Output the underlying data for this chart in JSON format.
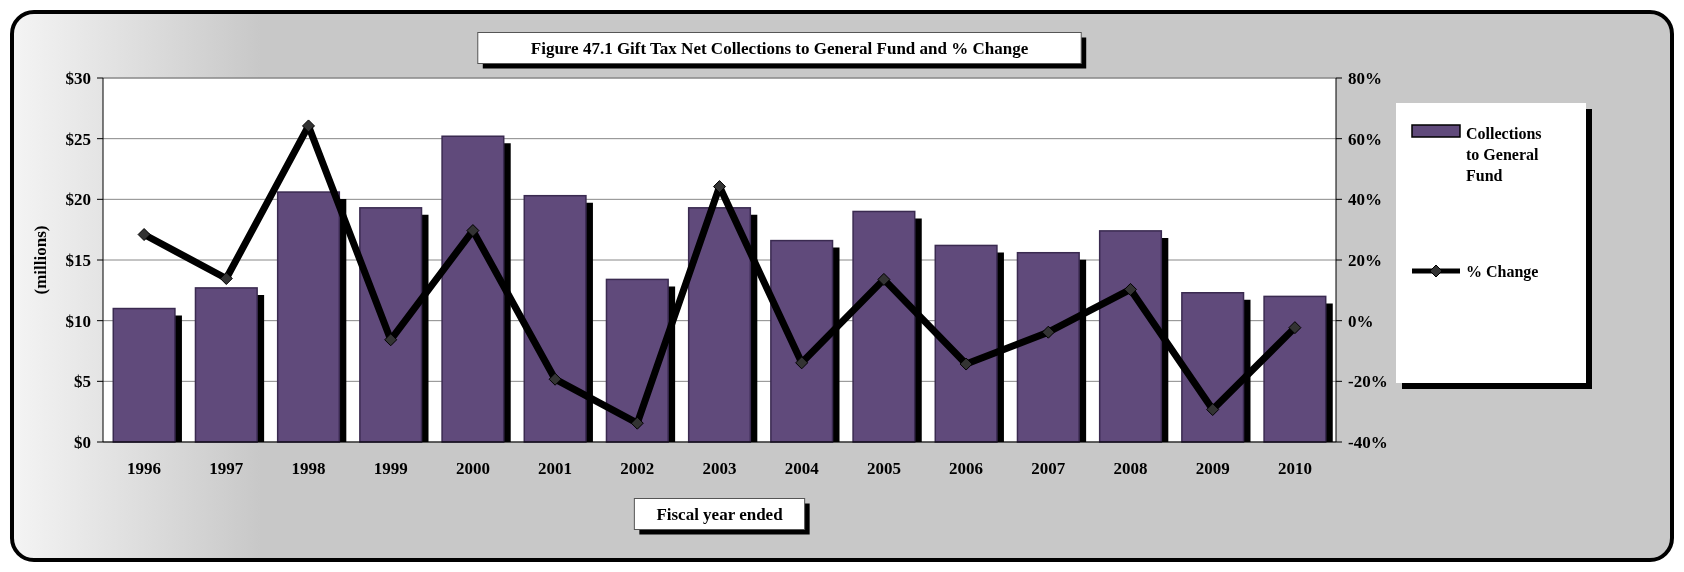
{
  "chart_data": {
    "type": "bar",
    "title": "Figure 47.1  Gift Tax Net Collections to General Fund and % Change",
    "xlabel": "Fiscal year ended",
    "ylabel": "(millions)",
    "categories": [
      "1996",
      "1997",
      "1998",
      "1999",
      "2000",
      "2001",
      "2002",
      "2003",
      "2004",
      "2005",
      "2006",
      "2007",
      "2008",
      "2009",
      "2010"
    ],
    "series": [
      {
        "name": "Collections to General Fund",
        "color": "#604a7b",
        "values": [
          11.0,
          12.7,
          20.6,
          19.3,
          25.2,
          20.3,
          13.4,
          19.3,
          16.6,
          19.0,
          16.2,
          15.6,
          17.4,
          12.3,
          12.0
        ]
      },
      {
        "name": "% Change",
        "type": "line",
        "axis": "y2",
        "color": "#000000",
        "marker": "diamond",
        "values": [
          28.4,
          13.9,
          64.2,
          -6.3,
          29.7,
          -19.3,
          -33.8,
          44.2,
          -13.9,
          13.6,
          -14.3,
          -3.8,
          10.3,
          -29.3,
          -2.3
        ]
      }
    ],
    "ylim": [
      0,
      30
    ],
    "yticks": [
      {
        "value": 0,
        "label": "$0"
      },
      {
        "value": 5,
        "label": "$5"
      },
      {
        "value": 10,
        "label": "$10"
      },
      {
        "value": 15,
        "label": "$15"
      },
      {
        "value": 20,
        "label": "$20"
      },
      {
        "value": 25,
        "label": "$25"
      },
      {
        "value": 30,
        "label": "$30"
      }
    ],
    "y2lim": [
      -40,
      80
    ],
    "y2ticks": [
      {
        "value": -40,
        "label": "-40%"
      },
      {
        "value": -20,
        "label": "-20%"
      },
      {
        "value": 0,
        "label": "0%"
      },
      {
        "value": 20,
        "label": "20%"
      },
      {
        "value": 40,
        "label": "40%"
      },
      {
        "value": 60,
        "label": "60%"
      },
      {
        "value": 80,
        "label": "80%"
      }
    ],
    "grid": "y",
    "legend": "right"
  }
}
